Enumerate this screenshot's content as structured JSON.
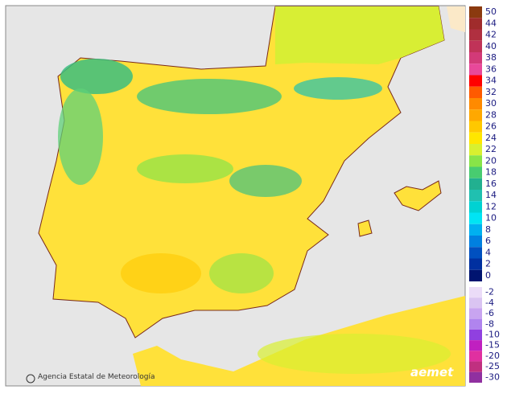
{
  "map": {
    "credit": "Agencia Estatal de Meteorología",
    "logo": "aemet"
  },
  "legend": {
    "upper": [
      {
        "value": 50,
        "color": "#8b3a0f"
      },
      {
        "value": 44,
        "color": "#a02c2c"
      },
      {
        "value": 42,
        "color": "#b03040"
      },
      {
        "value": 40,
        "color": "#c03358"
      },
      {
        "value": 38,
        "color": "#d23a78"
      },
      {
        "value": 36,
        "color": "#e8489a"
      },
      {
        "value": 34,
        "color": "#ff0000"
      },
      {
        "value": 32,
        "color": "#ff5a00"
      },
      {
        "value": 30,
        "color": "#ff8a00"
      },
      {
        "value": 28,
        "color": "#ffa800"
      },
      {
        "value": 26,
        "color": "#ffc800"
      },
      {
        "value": 24,
        "color": "#ffe600"
      },
      {
        "value": 22,
        "color": "#d8f030"
      },
      {
        "value": 20,
        "color": "#88e448"
      },
      {
        "value": 18,
        "color": "#48cc70"
      },
      {
        "value": 16,
        "color": "#22b090"
      },
      {
        "value": 14,
        "color": "#20c0b0"
      },
      {
        "value": 12,
        "color": "#00d2d2"
      },
      {
        "value": 10,
        "color": "#00e4f4"
      },
      {
        "value": 8,
        "color": "#00b0f0"
      },
      {
        "value": 6,
        "color": "#0080e0"
      },
      {
        "value": 4,
        "color": "#0050c0"
      },
      {
        "value": 2,
        "color": "#0030a0"
      },
      {
        "value": 0,
        "color": "#001470"
      }
    ],
    "lower": [
      {
        "value": -2,
        "color": "#ebdcf8"
      },
      {
        "value": -4,
        "color": "#dac4f2"
      },
      {
        "value": -6,
        "color": "#c8a4f0"
      },
      {
        "value": -8,
        "color": "#b084ee"
      },
      {
        "value": -10,
        "color": "#9040e0"
      },
      {
        "value": -15,
        "color": "#c020c0"
      },
      {
        "value": -20,
        "color": "#e030a0"
      },
      {
        "value": -25,
        "color": "#c03080"
      },
      {
        "value": -30,
        "color": "#9030a0"
      }
    ]
  }
}
